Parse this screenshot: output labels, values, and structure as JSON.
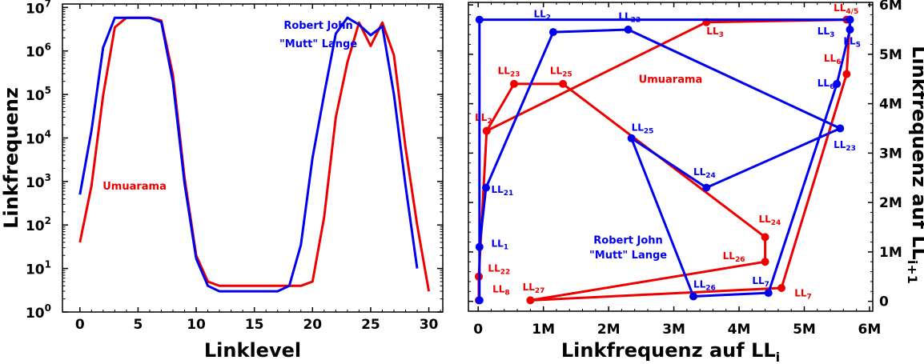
{
  "colors": {
    "red": "#ee0000",
    "blue": "#0000ee",
    "axis": "#000000"
  },
  "chart_data": [
    {
      "type": "line",
      "yscale": "log",
      "xlabel": "Linklevel",
      "ylabel": "Linkfrequenz",
      "xlim": [
        -1.5,
        31.2
      ],
      "ylim": [
        1,
        12000000
      ],
      "xticks": [
        "0",
        "5",
        "10",
        "15",
        "20",
        "25",
        "30"
      ],
      "xtick_values": [
        0,
        5,
        10,
        15,
        20,
        25,
        30
      ],
      "ytick_values": [
        1,
        10,
        100,
        1000,
        10000,
        100000,
        1000000,
        10000000
      ],
      "ytick_bases": [
        "10",
        "10",
        "10",
        "10",
        "10",
        "10",
        "10",
        "10"
      ],
      "ytick_exps": [
        "0",
        "1",
        "2",
        "3",
        "4",
        "5",
        "6",
        "7"
      ],
      "legend": "none",
      "series": [
        {
          "name": "Umuarama",
          "color": "#ee0000",
          "x": [
            0,
            1,
            2,
            3,
            4,
            5,
            6,
            7,
            8,
            9,
            10,
            11,
            12,
            13,
            14,
            15,
            16,
            17,
            18,
            19,
            20,
            21,
            22,
            23,
            24,
            25,
            26,
            27,
            28,
            29,
            30
          ],
          "y": [
            40,
            800,
            95000,
            3500000,
            5800000,
            5800000,
            5800000,
            5000000,
            280000,
            1200,
            20,
            5,
            4,
            4,
            4,
            4,
            4,
            4,
            4,
            4,
            5,
            150,
            30000,
            550000,
            4500000,
            1300000,
            4500000,
            800000,
            6000,
            100,
            3
          ]
        },
        {
          "name": "Robert John \"Mutt\" Lange",
          "color": "#0000ee",
          "x": [
            0,
            1,
            2,
            3,
            4,
            5,
            6,
            7,
            8,
            9,
            10,
            11,
            12,
            13,
            14,
            15,
            16,
            17,
            18,
            19,
            20,
            21,
            22,
            23,
            24,
            25,
            26,
            27,
            28,
            29
          ],
          "y": [
            500,
            15000,
            1200000,
            5800000,
            5800000,
            5800000,
            5800000,
            4600000,
            190000,
            900,
            17,
            4,
            3,
            3,
            3,
            3,
            3,
            3,
            4,
            35,
            3500,
            100000,
            2500000,
            5800000,
            4000000,
            2300000,
            3700000,
            100000,
            800,
            10
          ]
        }
      ],
      "annotations": [
        {
          "text": "Robert John",
          "color": "#0000ee",
          "x": 20.5,
          "y": 4000000
        },
        {
          "text": "\"Mutt\" Lange",
          "color": "#0000ee",
          "x": 20.5,
          "y": 1500000
        },
        {
          "text": "Umuarama",
          "color": "#ee0000",
          "x": 4.7,
          "y": 800
        }
      ]
    },
    {
      "type": "line",
      "markers": true,
      "xlabel": "Linkfrequenz auf LL",
      "xlabel_sub": "i",
      "ylabel": "Linkfrequenz auf LL",
      "ylabel_sub": "i+1",
      "xlim": [
        -0.15,
        6.05
      ],
      "ylim": [
        -0.2,
        6.05
      ],
      "xticks": [
        "0",
        "1M",
        "2M",
        "3M",
        "4M",
        "5M",
        "6M"
      ],
      "xtick_values": [
        0,
        1,
        2,
        3,
        4,
        5,
        6
      ],
      "yticks": [
        "0",
        "1M",
        "2M",
        "3M",
        "4M",
        "5M",
        "6M"
      ],
      "ytick_values": [
        0,
        1,
        2,
        3,
        4,
        5,
        6
      ],
      "legend": "none",
      "series": [
        {
          "name": "Umuarama",
          "color": "#ee0000",
          "x": [
            0.01,
            0.13,
            0.55,
            1.3,
            4.4,
            4.4,
            0.8,
            4.65,
            5.65,
            5.7,
            5.65,
            3.5,
            0.13,
            0.01,
            0.01
          ],
          "y": [
            0.5,
            3.45,
            4.4,
            4.4,
            1.3,
            0.8,
            0.02,
            0.27,
            4.6,
            5.7,
            5.7,
            5.65,
            3.45,
            0.5,
            0.02
          ],
          "labels": [
            {
              "base": "LL",
              "sub": "22",
              "x": 0.15,
              "y": 0.6
            },
            {
              "base": "LL",
              "sub": "2",
              "x": -0.05,
              "y": 3.65
            },
            {
              "base": "LL",
              "sub": "23",
              "x": 0.3,
              "y": 4.6
            },
            {
              "base": "LL",
              "sub": "25",
              "x": 1.1,
              "y": 4.6
            },
            {
              "base": "LL",
              "sub": "24",
              "x": 4.3,
              "y": 1.6
            },
            {
              "base": "LL",
              "sub": "26",
              "x": 3.75,
              "y": 0.85
            },
            {
              "base": "LL",
              "sub": "27",
              "x": 0.68,
              "y": 0.22
            },
            {
              "base": "LL",
              "sub": "8",
              "x": 0.22,
              "y": 0.18
            },
            {
              "base": "LL",
              "sub": "7",
              "x": 4.85,
              "y": 0.1
            },
            {
              "base": "LL",
              "sub": "6",
              "x": 5.3,
              "y": 4.85
            },
            {
              "base": "LL",
              "sub": "4/5",
              "x": 5.45,
              "y": 5.87
            },
            {
              "base": "LL",
              "sub": "3",
              "x": 3.5,
              "y": 5.4
            }
          ]
        },
        {
          "name": "Robert John \"Mutt\" Lange",
          "color": "#0000ee",
          "x": [
            0.02,
            0.12,
            1.15,
            2.3,
            5.55,
            3.5,
            2.35,
            3.3,
            4.45,
            5.5,
            5.7,
            5.7,
            0.02,
            0.02
          ],
          "y": [
            1.1,
            2.3,
            5.45,
            5.5,
            3.5,
            2.3,
            3.3,
            0.1,
            0.17,
            4.4,
            5.5,
            5.7,
            5.7,
            0.02
          ],
          "labels": [
            {
              "base": "LL",
              "sub": "1",
              "x": 0.2,
              "y": 1.1
            },
            {
              "base": "LL",
              "sub": "21",
              "x": 0.2,
              "y": 2.2
            },
            {
              "base": "LL",
              "sub": "2",
              "x": 0.85,
              "y": 5.75
            },
            {
              "base": "LL",
              "sub": "22",
              "x": 2.15,
              "y": 5.7
            },
            {
              "base": "LL",
              "sub": "25",
              "x": 2.35,
              "y": 3.45
            },
            {
              "base": "LL",
              "sub": "24",
              "x": 3.3,
              "y": 2.55
            },
            {
              "base": "LL",
              "sub": "23",
              "x": 5.45,
              "y": 3.1
            },
            {
              "base": "LL",
              "sub": "26",
              "x": 3.3,
              "y": 0.28
            },
            {
              "base": "LL",
              "sub": "7",
              "x": 4.2,
              "y": 0.35
            },
            {
              "base": "LL",
              "sub": "6",
              "x": 5.2,
              "y": 4.35
            },
            {
              "base": "LL",
              "sub": "5",
              "x": 5.6,
              "y": 5.2
            },
            {
              "base": "LL",
              "sub": "3",
              "x": 5.2,
              "y": 5.4
            }
          ]
        }
      ],
      "annotations": [
        {
          "text": "Umuarama",
          "color": "#ee0000",
          "x": 2.95,
          "y": 4.5
        },
        {
          "text": "Robert John",
          "color": "#0000ee",
          "x": 2.3,
          "y": 1.25
        },
        {
          "text": "\"Mutt\" Lange",
          "color": "#0000ee",
          "x": 2.3,
          "y": 0.95
        }
      ]
    }
  ]
}
